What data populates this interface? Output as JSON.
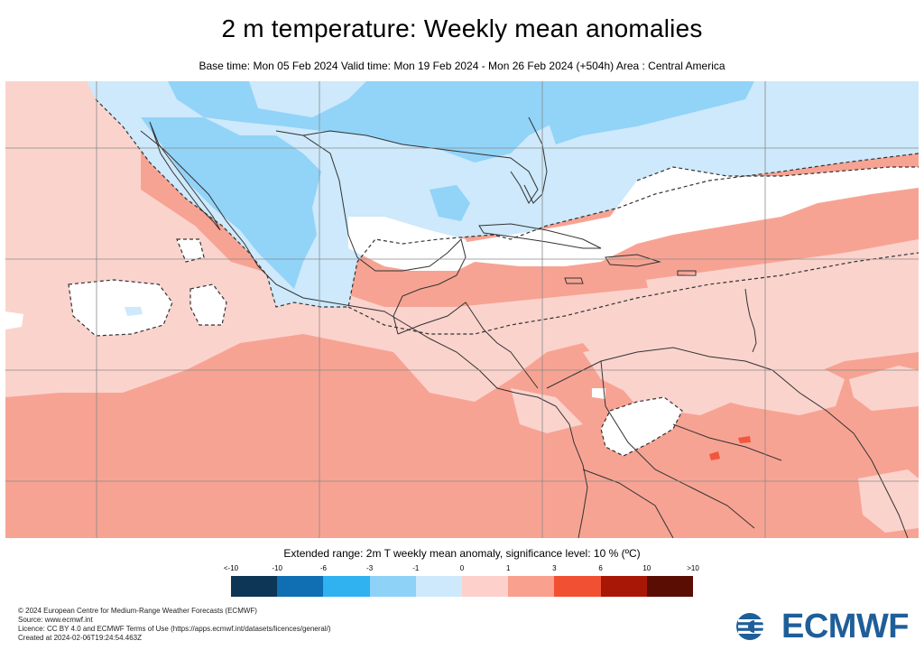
{
  "header": {
    "title": "2 m temperature: Weekly mean anomalies",
    "subtitle": "Base time: Mon 05 Feb 2024 Valid time: Mon 19 Feb 2024 - Mon 26 Feb 2024 (+504h) Area : Central America"
  },
  "legend": {
    "title": "Extended range: 2m T weekly mean anomaly, significance level: 10 % (ºC)",
    "labels": [
      "<-10",
      "-10",
      "-6",
      "-3",
      "-1",
      "0",
      "1",
      "3",
      "6",
      "10",
      ">10"
    ],
    "colors": [
      "#0d3656",
      "#0f6fb2",
      "#2fb2ef",
      "#8fd2f7",
      "#cde9fb",
      "#fdd0cc",
      "#f9a08e",
      "#f25032",
      "#a81706",
      "#5a0d03"
    ]
  },
  "map_colors": {
    "warm_light": "#fbd3cd",
    "warm": "#f7a393",
    "warm_strong": "#f0573c",
    "cool_light": "#cde9fb",
    "cool": "#92d3f8",
    "neutral": "#ffffff",
    "grid": "#8a8a8a",
    "coast": "#333333"
  },
  "footer": {
    "line1": "© 2024 European Centre for Medium-Range Weather Forecasts (ECMWF)",
    "line2": "Source: www.ecmwf.int",
    "line3": "Licence: CC BY 4.0 and ECMWF Terms of Use (https://apps.ecmwf.int/datasets/licences/general/)",
    "line4": "Created at 2024-02-06T19:24:54.463Z"
  },
  "logo": {
    "text": "ECMWF"
  }
}
